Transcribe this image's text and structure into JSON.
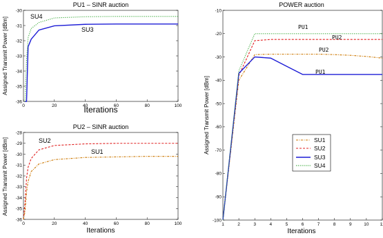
{
  "colors": {
    "SU1": "#cc7700",
    "SU2": "#e02020",
    "SU3": "#1c1cd6",
    "SU4": "#3caa3c"
  },
  "chart_data": [
    {
      "id": "pu1",
      "type": "line",
      "title": "PU1 – SINR auction",
      "xlabel": "Iterations",
      "ylabel": "Assigned Transmit Power [dBm]",
      "xlim": [
        0,
        100
      ],
      "ylim": [
        -36,
        -30
      ],
      "xticks": [
        "0",
        "20",
        "40",
        "60",
        "80",
        "100"
      ],
      "yticks": [
        "-30",
        "-31",
        "-32",
        "-33",
        "-34",
        "-35",
        "-36"
      ],
      "series": [
        {
          "name": "SU3",
          "color": "#1c1cd6",
          "dash": "",
          "saturate": -30.9,
          "start": -36,
          "rate": 0.12,
          "points": [
            [
              1,
              -36
            ],
            [
              2,
              -36
            ],
            [
              3,
              -32.4
            ],
            [
              5,
              -31.9
            ],
            [
              10,
              -31.3
            ],
            [
              20,
              -31.02
            ],
            [
              40,
              -30.92
            ],
            [
              60,
              -30.9
            ],
            [
              80,
              -30.9
            ],
            [
              100,
              -30.9
            ]
          ]
        },
        {
          "name": "SU4",
          "color": "#3caa3c",
          "dash": "1.2,1.6",
          "saturate": -30.4,
          "start": -36,
          "rate": 0.12,
          "points": [
            [
              1,
              -36
            ],
            [
              2,
              -33.2
            ],
            [
              3,
              -31.8
            ],
            [
              5,
              -31.2
            ],
            [
              10,
              -30.8
            ],
            [
              20,
              -30.5
            ],
            [
              40,
              -30.42
            ],
            [
              60,
              -30.4
            ],
            [
              80,
              -30.4
            ],
            [
              100,
              -30.4
            ]
          ]
        }
      ],
      "annotations": [
        "SU4",
        "SU3"
      ]
    },
    {
      "id": "pu2",
      "type": "line",
      "title": "PU2 – SINR auction",
      "xlabel": "Iterations",
      "ylabel": "Assigned Transmit Power [dBm]",
      "xlim": [
        0,
        100
      ],
      "ylim": [
        -36,
        -28
      ],
      "xticks": [
        "0",
        "20",
        "40",
        "60",
        "80",
        "100"
      ],
      "yticks": [
        "-28",
        "-29",
        "-30",
        "-31",
        "-32",
        "-33",
        "-34",
        "-35",
        "-36"
      ],
      "series": [
        {
          "name": "SU2",
          "color": "#e02020",
          "dash": "3,2",
          "points": [
            [
              0,
              -36
            ],
            [
              1,
              -34.5
            ],
            [
              2,
              -32.2
            ],
            [
              3,
              -31.2
            ],
            [
              5,
              -30.4
            ],
            [
              10,
              -29.6
            ],
            [
              20,
              -29.2
            ],
            [
              40,
              -29.05
            ],
            [
              60,
              -29.0
            ],
            [
              80,
              -29.0
            ],
            [
              100,
              -29.0
            ]
          ]
        },
        {
          "name": "SU1",
          "color": "#cc7700",
          "dash": "3,1.5,1,1.5",
          "points": [
            [
              0,
              -36
            ],
            [
              1,
              -35.3
            ],
            [
              2,
              -33.5
            ],
            [
              3,
              -32.5
            ],
            [
              5,
              -31.6
            ],
            [
              10,
              -30.9
            ],
            [
              20,
              -30.5
            ],
            [
              40,
              -30.3
            ],
            [
              60,
              -30.25
            ],
            [
              80,
              -30.2
            ],
            [
              100,
              -30.2
            ]
          ]
        }
      ],
      "annotations": [
        "SU2",
        "SU1"
      ]
    },
    {
      "id": "power",
      "type": "line",
      "title": "POWER auction",
      "xlabel": "Iterations",
      "ylabel": "Assigned Transmit Power [dBm]",
      "xlim": [
        1,
        11
      ],
      "ylim": [
        -100,
        -10
      ],
      "xticks": [
        "1",
        "2",
        "3",
        "4",
        "5",
        "6",
        "7",
        "8",
        "9",
        "10",
        "11"
      ],
      "yticks": [
        "-10",
        "-20",
        "-30",
        "-40",
        "-50",
        "-60",
        "-70",
        "-80",
        "-90",
        "-100"
      ],
      "series": [
        {
          "name": "SU1",
          "color": "#cc7700",
          "dash": "3,1.5,1,1.5",
          "points": [
            [
              1,
              -100
            ],
            [
              2,
              -40
            ],
            [
              3,
              -29
            ],
            [
              4,
              -28.8
            ],
            [
              5,
              -28.8
            ],
            [
              6,
              -28.8
            ],
            [
              7,
              -28.8
            ],
            [
              8,
              -29
            ],
            [
              9,
              -29.3
            ],
            [
              10,
              -29.8
            ],
            [
              11,
              -30.5
            ]
          ]
        },
        {
          "name": "SU2",
          "color": "#e02020",
          "dash": "3,2",
          "points": [
            [
              1,
              -100
            ],
            [
              2,
              -38
            ],
            [
              3,
              -23
            ],
            [
              4,
              -22.5
            ],
            [
              5,
              -22.5
            ],
            [
              6,
              -22.5
            ],
            [
              7,
              -22.5
            ],
            [
              8,
              -22.5
            ],
            [
              9,
              -22.5
            ],
            [
              10,
              -22.5
            ],
            [
              11,
              -22.5
            ]
          ]
        },
        {
          "name": "SU3",
          "color": "#1c1cd6",
          "dash": "",
          "points": [
            [
              1,
              -100
            ],
            [
              2,
              -37
            ],
            [
              3,
              -30
            ],
            [
              4,
              -30.5
            ],
            [
              5,
              -34
            ],
            [
              6,
              -37.5
            ],
            [
              7,
              -37.5
            ],
            [
              8,
              -37.5
            ],
            [
              9,
              -37.5
            ],
            [
              10,
              -37.5
            ],
            [
              11,
              -37.5
            ]
          ]
        },
        {
          "name": "SU4",
          "color": "#3caa3c",
          "dash": "1.2,1.6",
          "points": [
            [
              1,
              -100
            ],
            [
              2,
              -36
            ],
            [
              3,
              -20
            ],
            [
              4,
              -20
            ],
            [
              5,
              -20
            ],
            [
              6,
              -20
            ],
            [
              7,
              -20
            ],
            [
              8,
              -20
            ],
            [
              9,
              -20
            ],
            [
              10,
              -20
            ],
            [
              11,
              -20
            ]
          ]
        }
      ],
      "annotations": [
        "PU1",
        "PU2",
        "PU2",
        "PU1"
      ],
      "legend": [
        "SU1",
        "SU2",
        "SU3",
        "SU4"
      ],
      "legend_position": "center-bottom"
    }
  ]
}
